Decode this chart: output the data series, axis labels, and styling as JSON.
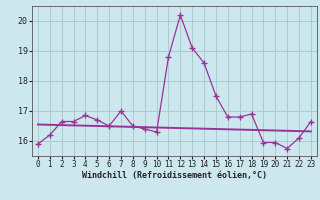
{
  "xlabel": "Windchill (Refroidissement éolien,°C)",
  "background_color": "#cce8ee",
  "grid_color": "#aacccc",
  "line_color": "#993399",
  "x": [
    0,
    1,
    2,
    3,
    4,
    5,
    6,
    7,
    8,
    9,
    10,
    11,
    12,
    13,
    14,
    15,
    16,
    17,
    18,
    19,
    20,
    21,
    22,
    23
  ],
  "y_main": [
    15.9,
    16.2,
    16.65,
    16.65,
    16.85,
    16.7,
    16.5,
    17.0,
    16.5,
    16.4,
    16.3,
    18.8,
    20.2,
    19.1,
    18.6,
    17.5,
    16.8,
    16.8,
    16.9,
    15.95,
    15.95,
    15.75,
    16.1,
    16.65
  ],
  "y_smooth": [
    16.55,
    16.54,
    16.53,
    16.52,
    16.51,
    16.5,
    16.49,
    16.48,
    16.47,
    16.46,
    16.45,
    16.44,
    16.43,
    16.42,
    16.41,
    16.4,
    16.39,
    16.38,
    16.37,
    16.36,
    16.35,
    16.34,
    16.33,
    16.32
  ],
  "ylim": [
    15.5,
    20.5
  ],
  "yticks": [
    16,
    17,
    18,
    19,
    20
  ],
  "xlim": [
    -0.5,
    23.5
  ],
  "xticks": [
    0,
    1,
    2,
    3,
    4,
    5,
    6,
    7,
    8,
    9,
    10,
    11,
    12,
    13,
    14,
    15,
    16,
    17,
    18,
    19,
    20,
    21,
    22,
    23
  ],
  "xlabel_fontsize": 6.0,
  "tick_fontsize": 5.5
}
